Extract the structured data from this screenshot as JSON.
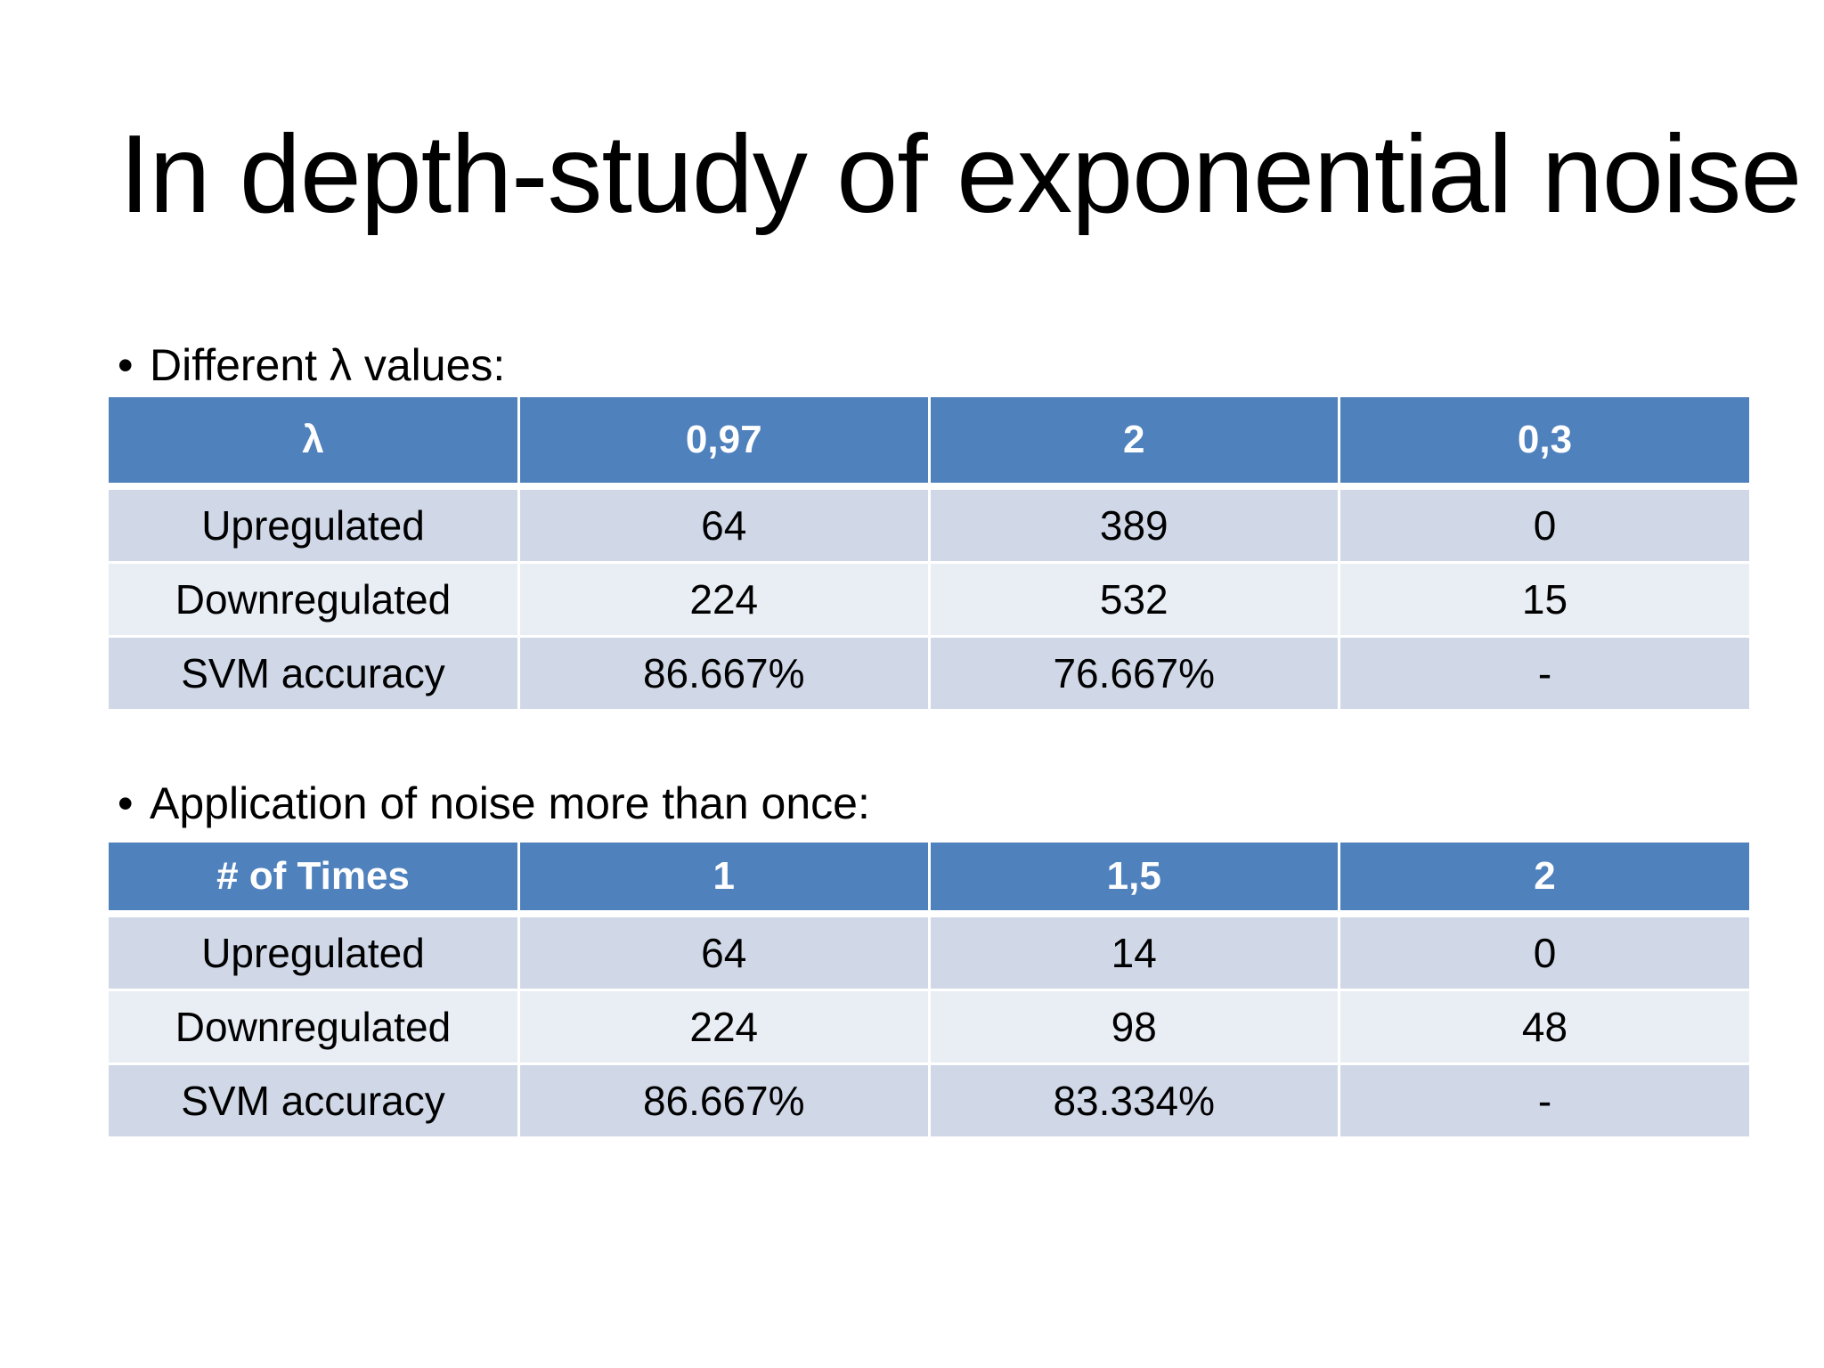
{
  "slide": {
    "title": "In depth-study of exponential noise"
  },
  "bullets": [
    "Different λ values:",
    "Application of noise more than once:"
  ],
  "bullet_symbol": "•",
  "tables": [
    {
      "headers": [
        "λ",
        "0,97",
        "2",
        "0,3"
      ],
      "rows": [
        [
          "Upregulated",
          "64",
          "389",
          "0"
        ],
        [
          "Downregulated",
          "224",
          "532",
          "15"
        ],
        [
          "SVM accuracy",
          "86.667%",
          "76.667%",
          "-"
        ]
      ]
    },
    {
      "headers": [
        "# of Times",
        "1",
        "1,5",
        "2"
      ],
      "rows": [
        [
          "Upregulated",
          "64",
          "14",
          "0"
        ],
        [
          "Downregulated",
          "224",
          "98",
          "48"
        ],
        [
          "SVM accuracy",
          "86.667%",
          "83.334%",
          "-"
        ]
      ]
    }
  ],
  "colors": {
    "header_bg": "#4f81bd",
    "row_odd_bg": "#d0d8e8",
    "row_even_bg": "#e9edf4",
    "header_text": "#ffffff"
  }
}
